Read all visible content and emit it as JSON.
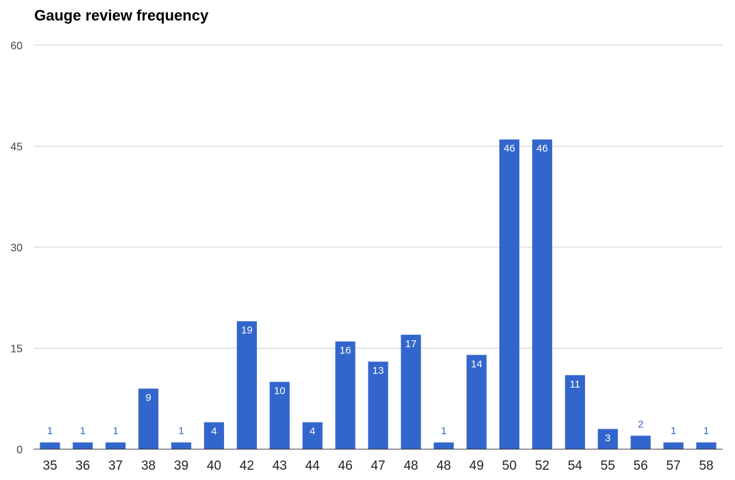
{
  "colors": {
    "bar": "#3366cc",
    "label_inside": "#ffffff",
    "label_outside": "#3366cc"
  },
  "chart_data": {
    "type": "bar",
    "title": "Gauge review frequency",
    "xlabel": "",
    "ylabel": "",
    "ylim": [
      0,
      60
    ],
    "yticks": [
      0,
      15,
      30,
      45,
      60
    ],
    "grid": true,
    "legend": "none",
    "categories": [
      "35",
      "36",
      "37",
      "38",
      "39",
      "40",
      "42",
      "43",
      "44",
      "46",
      "47",
      "48",
      "48",
      "49",
      "50",
      "52",
      "54",
      "55",
      "56",
      "57",
      "58"
    ],
    "values": [
      1,
      1,
      1,
      9,
      1,
      4,
      19,
      10,
      4,
      16,
      13,
      17,
      1,
      14,
      46,
      46,
      11,
      3,
      2,
      1,
      1
    ]
  }
}
